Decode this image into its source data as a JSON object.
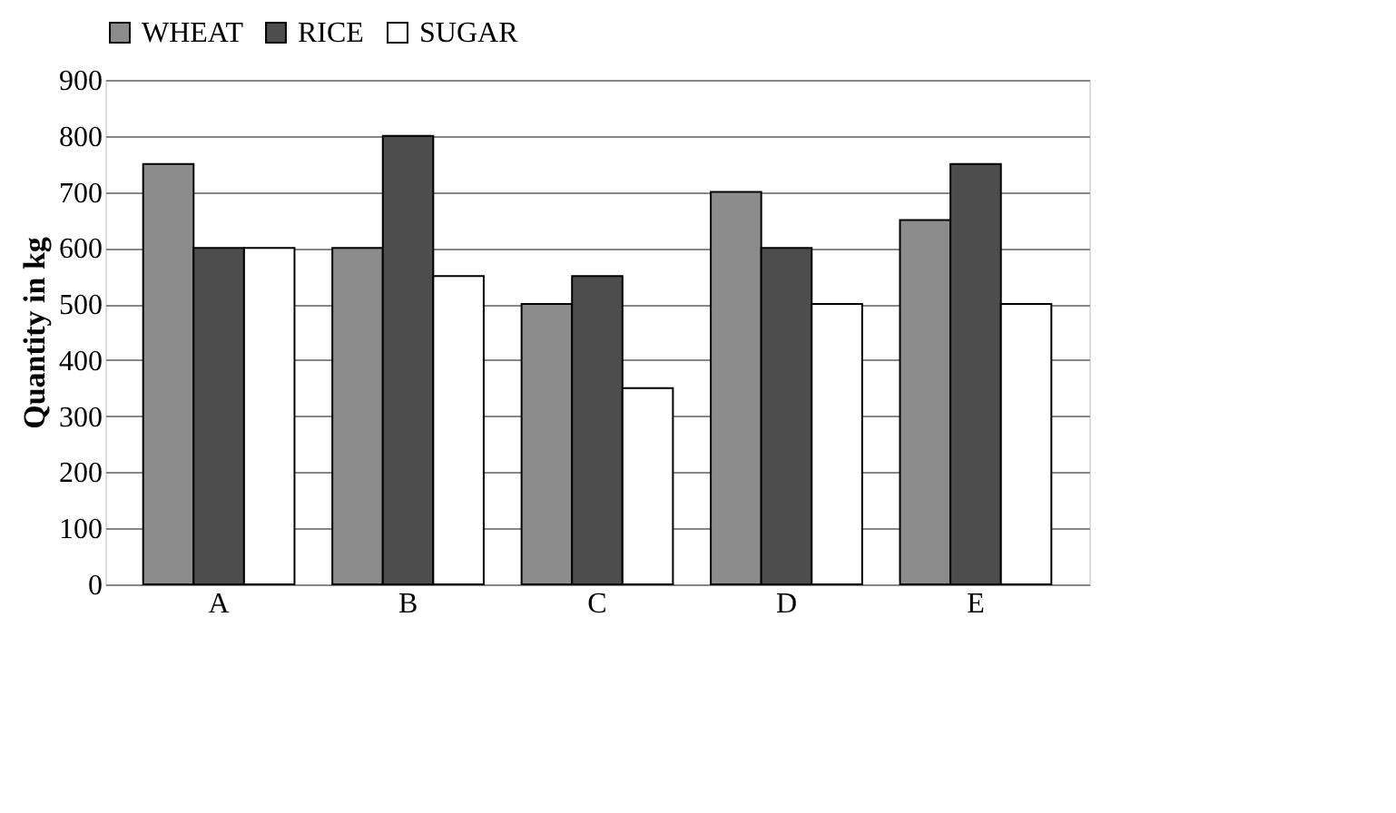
{
  "chart_data": {
    "type": "bar",
    "ylabel": "Quantity in kg",
    "categories": [
      "A",
      "B",
      "C",
      "D",
      "E"
    ],
    "series": [
      {
        "name": "WHEAT",
        "color": "#8c8c8c",
        "values": [
          750,
          600,
          500,
          700,
          650
        ]
      },
      {
        "name": "RICE",
        "color": "#4d4d4d",
        "values": [
          600,
          800,
          550,
          600,
          750
        ]
      },
      {
        "name": "SUGAR",
        "color": "#ffffff",
        "values": [
          600,
          550,
          350,
          500,
          500
        ]
      }
    ],
    "ylim": [
      0,
      900
    ],
    "yticks": [
      0,
      100,
      200,
      300,
      400,
      500,
      600,
      700,
      800,
      900
    ],
    "grid": "y",
    "legend": "top"
  }
}
